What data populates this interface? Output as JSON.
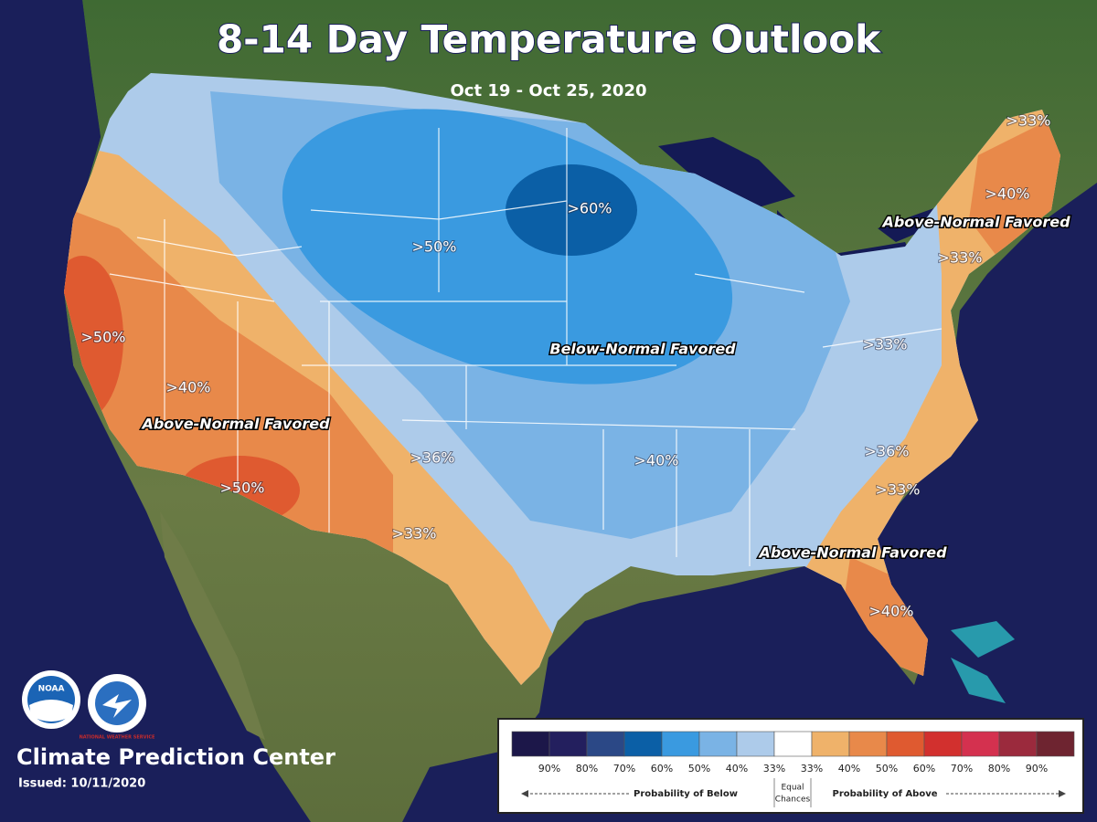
{
  "header": {
    "title": "8-14 Day Temperature Outlook",
    "subtitle": "Oct 19 - Oct 25, 2020"
  },
  "map_labels": [
    ">33%",
    ">40%",
    "Above-Normal Favored",
    ">33%",
    ">60%",
    ">50%",
    "Below-Normal Favored",
    ">33%",
    ">50%",
    ">40%",
    "Above-Normal Favored",
    ">36%",
    ">50%",
    ">33%",
    ">40%",
    ">36%",
    ">33%",
    "Above-Normal Favored",
    ">40%"
  ],
  "legend": {
    "swatch_colors": [
      "#1c1749",
      "#231f5e",
      "#2b4886",
      "#0b5fa6",
      "#3a9ae0",
      "#7ab3e5",
      "#adcbea",
      "#ffffff",
      "#efb26a",
      "#e8894a",
      "#df5a30",
      "#d2302e",
      "#d4314f",
      "#9b2a3d",
      "#6e2430"
    ],
    "labels": [
      "90%",
      "80%",
      "70%",
      "60%",
      "50%",
      "40%",
      "33%",
      "33%",
      "40%",
      "50%",
      "60%",
      "70%",
      "80%",
      "90%"
    ],
    "below_caption": "Probability of Below",
    "equal_caption": [
      "Equal",
      "Chances"
    ],
    "above_caption": "Probability of Above"
  },
  "logos": [
    "NOAA",
    "NATIONAL WEATHER SERVICE"
  ],
  "footer": {
    "organization": "Climate Prediction Center",
    "issued": "Issued: 10/11/2020"
  }
}
